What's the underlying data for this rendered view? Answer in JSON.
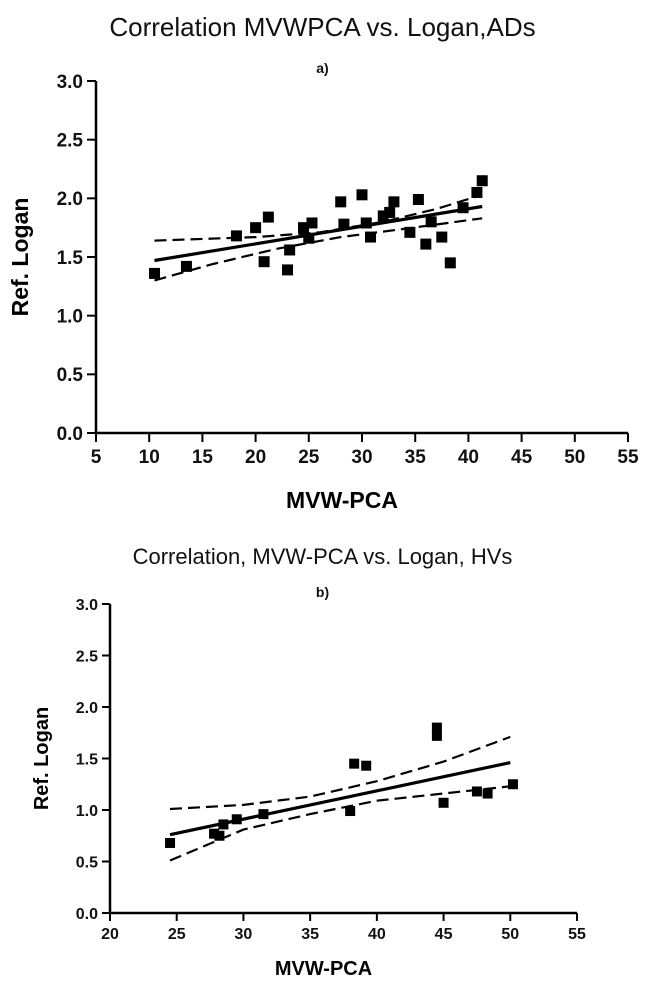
{
  "chart_data": [
    {
      "type": "scatter",
      "title": "Correlation MVWPCA vs. Logan,ADs",
      "subtitle": "a)",
      "xlabel": "MVW-PCA",
      "ylabel": "Ref. Logan",
      "xlim": [
        5,
        55
      ],
      "ylim": [
        0.0,
        3.0
      ],
      "xticks": [
        5,
        10,
        15,
        20,
        25,
        30,
        35,
        40,
        45,
        50,
        55
      ],
      "yticks": [
        0.0,
        0.5,
        1.0,
        1.5,
        2.0,
        2.5,
        3.0
      ],
      "grid": false,
      "points": [
        {
          "x": 10.5,
          "y": 1.36
        },
        {
          "x": 13.5,
          "y": 1.42
        },
        {
          "x": 18.2,
          "y": 1.68
        },
        {
          "x": 20.0,
          "y": 1.75
        },
        {
          "x": 20.8,
          "y": 1.46
        },
        {
          "x": 21.2,
          "y": 1.84
        },
        {
          "x": 23.0,
          "y": 1.39
        },
        {
          "x": 23.2,
          "y": 1.56
        },
        {
          "x": 24.5,
          "y": 1.75
        },
        {
          "x": 25.0,
          "y": 1.66
        },
        {
          "x": 25.3,
          "y": 1.79
        },
        {
          "x": 28.0,
          "y": 1.97
        },
        {
          "x": 28.3,
          "y": 1.78
        },
        {
          "x": 30.0,
          "y": 2.03
        },
        {
          "x": 30.4,
          "y": 1.79
        },
        {
          "x": 30.8,
          "y": 1.67
        },
        {
          "x": 32.0,
          "y": 1.85
        },
        {
          "x": 32.6,
          "y": 1.88
        },
        {
          "x": 33.0,
          "y": 1.97
        },
        {
          "x": 34.5,
          "y": 1.71
        },
        {
          "x": 35.3,
          "y": 1.99
        },
        {
          "x": 36.0,
          "y": 1.61
        },
        {
          "x": 36.5,
          "y": 1.8
        },
        {
          "x": 37.5,
          "y": 1.67
        },
        {
          "x": 38.3,
          "y": 1.45
        },
        {
          "x": 39.5,
          "y": 1.92
        },
        {
          "x": 40.8,
          "y": 2.05
        },
        {
          "x": 41.3,
          "y": 2.15
        }
      ],
      "fit": {
        "x": [
          10.5,
          41.3
        ],
        "y": [
          1.47,
          1.93
        ]
      },
      "ci_upper": {
        "x": [
          10.5,
          20,
          26,
          32,
          37,
          41.3
        ],
        "y": [
          1.64,
          1.67,
          1.71,
          1.8,
          1.91,
          2.03
        ]
      },
      "ci_lower": {
        "x": [
          10.5,
          16,
          22,
          28,
          34,
          41.3
        ],
        "y": [
          1.3,
          1.44,
          1.57,
          1.67,
          1.74,
          1.83
        ]
      }
    },
    {
      "type": "scatter",
      "title": "Correlation, MVW-PCA vs. Logan, HVs",
      "subtitle": "b)",
      "xlabel": "MVW-PCA",
      "ylabel": "Ref. Logan",
      "xlim": [
        20,
        55
      ],
      "ylim": [
        0.0,
        3.0
      ],
      "xticks": [
        20,
        25,
        30,
        35,
        40,
        45,
        50,
        55
      ],
      "yticks": [
        0.0,
        0.5,
        1.0,
        1.5,
        2.0,
        2.5,
        3.0
      ],
      "grid": false,
      "points": [
        {
          "x": 24.5,
          "y": 0.68
        },
        {
          "x": 27.8,
          "y": 0.77
        },
        {
          "x": 28.2,
          "y": 0.75
        },
        {
          "x": 28.5,
          "y": 0.86
        },
        {
          "x": 29.5,
          "y": 0.91
        },
        {
          "x": 31.5,
          "y": 0.96
        },
        {
          "x": 38.0,
          "y": 0.99
        },
        {
          "x": 38.3,
          "y": 1.45
        },
        {
          "x": 39.2,
          "y": 1.43
        },
        {
          "x": 44.5,
          "y": 1.8
        },
        {
          "x": 44.5,
          "y": 1.72
        },
        {
          "x": 45.0,
          "y": 1.07
        },
        {
          "x": 47.5,
          "y": 1.18
        },
        {
          "x": 48.3,
          "y": 1.16
        },
        {
          "x": 50.2,
          "y": 1.25
        }
      ],
      "fit": {
        "x": [
          24.5,
          50.0
        ],
        "y": [
          0.76,
          1.46
        ]
      },
      "ci_upper": {
        "x": [
          24.5,
          30,
          35,
          40,
          45,
          50.0
        ],
        "y": [
          1.01,
          1.05,
          1.13,
          1.28,
          1.47,
          1.71
        ]
      },
      "ci_lower": {
        "x": [
          24.5,
          30,
          35,
          40,
          45,
          50.0
        ],
        "y": [
          0.51,
          0.81,
          0.96,
          1.09,
          1.16,
          1.23
        ]
      }
    }
  ]
}
